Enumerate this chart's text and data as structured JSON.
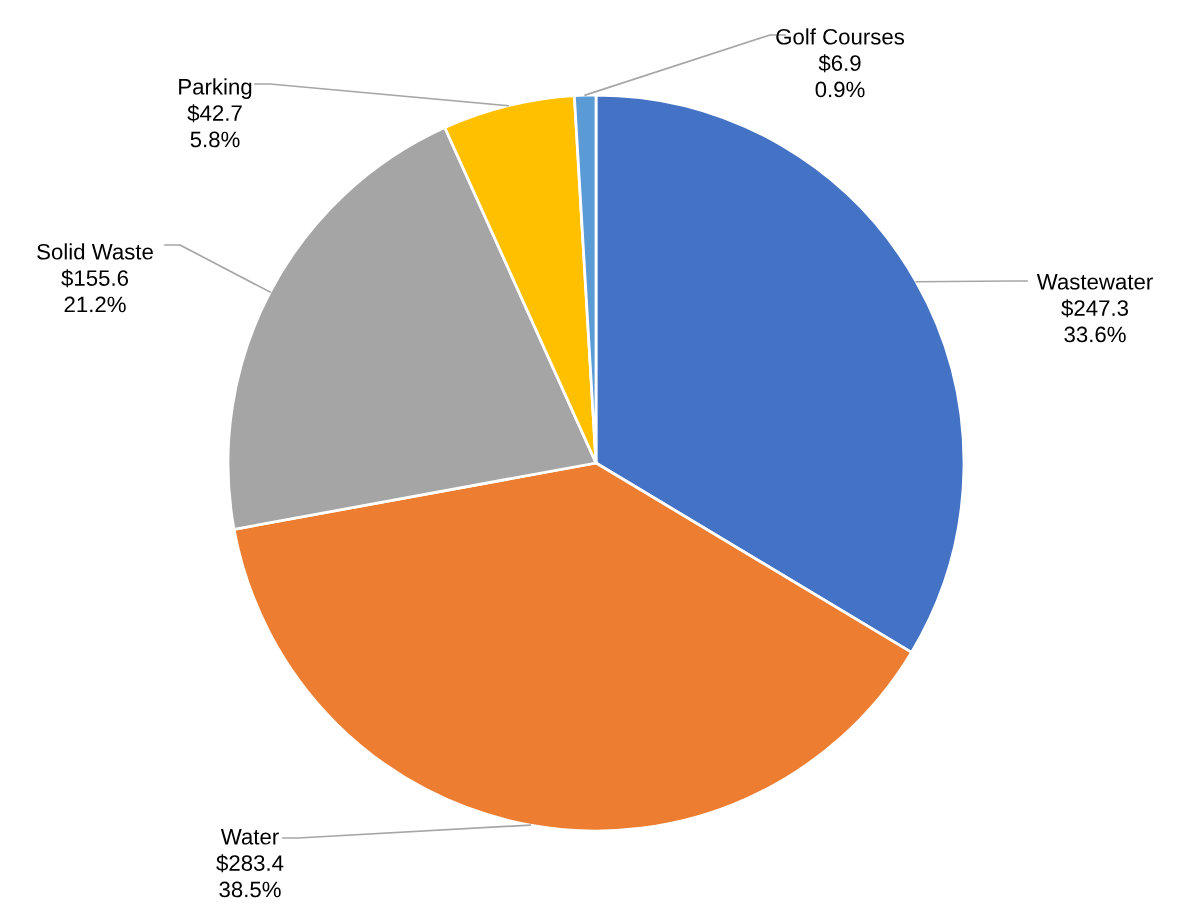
{
  "chart_data": {
    "type": "pie",
    "categories": [
      "Wastewater",
      "Water",
      "Solid Waste",
      "Parking",
      "Golf Courses"
    ],
    "values": [
      247.3,
      283.4,
      155.6,
      42.7,
      6.9
    ],
    "value_labels": [
      "$247.3\n33.6%",
      "$283.4\n38.5%",
      "$155.6\n21.2%",
      "$42.7\n5.8%",
      "$6.9\n0.9%"
    ],
    "colors": [
      "#4472c4",
      "#ed7d31",
      "#a5a5a5",
      "#ffc000",
      "#5b9bd5"
    ],
    "legend": false
  }
}
